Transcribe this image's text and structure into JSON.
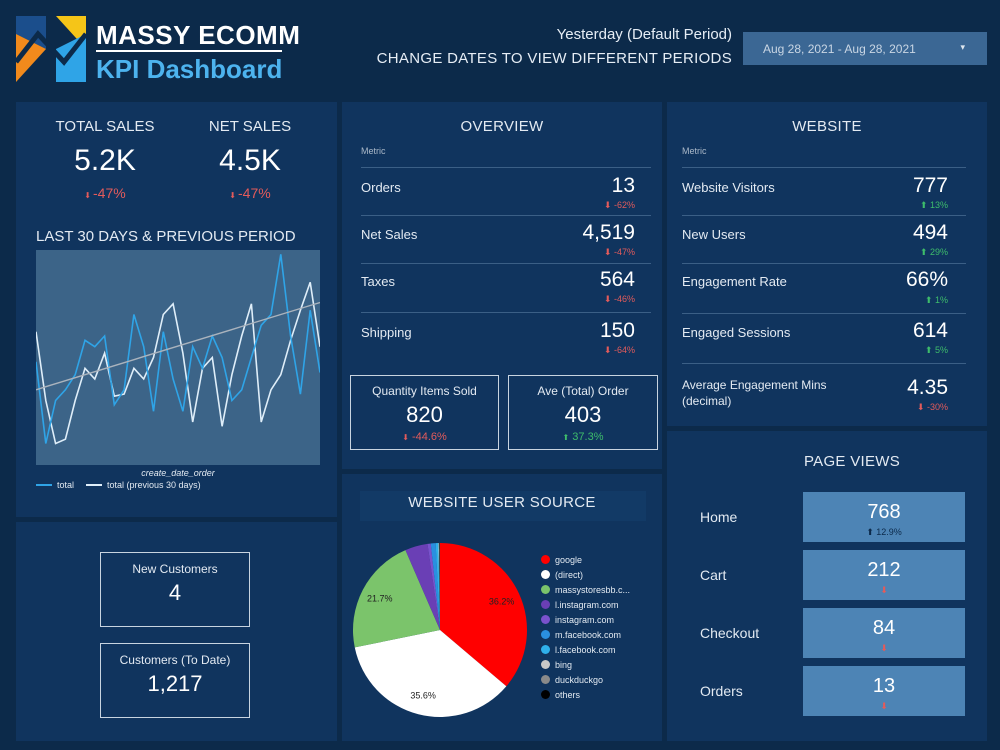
{
  "header": {
    "brand_line1": "MASSY ECOMM",
    "brand_line2": "KPI Dashboard",
    "period_label": "Yesterday (Default Period)",
    "period_hint": "CHANGE DATES TO VIEW DIFFERENT PERIODS",
    "date_range": "Aug 28, 2021 - Aug 28, 2021"
  },
  "colors": {
    "bg": "#0c2a4a",
    "panel": "#10345e",
    "negative": "#e35b5b",
    "positive": "#3ebd6b",
    "series_total": "#2fa4e7",
    "series_prev": "#dfeef9",
    "trend": "#aab3bd"
  },
  "sales": {
    "total_label": "TOTAL SALES",
    "total_value": "5.2K",
    "total_delta": "-47%",
    "net_label": "NET SALES",
    "net_value": "4.5K",
    "net_delta": "-47%"
  },
  "customers": {
    "new_label": "New Customers",
    "new_value": "4",
    "todate_label": "Customers (To Date)",
    "todate_value": "1,217"
  },
  "overview": {
    "title": "OVERVIEW",
    "metric_header": "Metric",
    "rows": [
      {
        "label": "Orders",
        "value": "13",
        "delta": "-62%"
      },
      {
        "label": "Net Sales",
        "value": "4,519",
        "delta": "-47%"
      },
      {
        "label": "Taxes",
        "value": "564",
        "delta": "-46%"
      },
      {
        "label": "Shipping",
        "value": "150",
        "delta": "-64%"
      }
    ],
    "qty_label": "Quantity Items Sold",
    "qty_value": "820",
    "qty_delta": "-44.6%",
    "ave_label": "Ave (Total) Order",
    "ave_value": "403",
    "ave_delta": "37.3%"
  },
  "website": {
    "title": "WEBSITE",
    "metric_header": "Metric",
    "rows": [
      {
        "label": "Website Visitors",
        "value": "777",
        "delta": "13%",
        "dir": "up"
      },
      {
        "label": "New Users",
        "value": "494",
        "delta": "29%",
        "dir": "up"
      },
      {
        "label": "Engagement Rate",
        "value": "66%",
        "delta": "1%",
        "dir": "up"
      },
      {
        "label": "Engaged Sessions",
        "value": "614",
        "delta": "5%",
        "dir": "up"
      },
      {
        "label": "Average Engagement Mins (decimal)",
        "value": "4.35",
        "delta": "-30%",
        "dir": "down"
      }
    ]
  },
  "page_views": {
    "title": "PAGE VIEWS",
    "rows": [
      {
        "label": "Home",
        "value": "768",
        "delta": "12.9%",
        "dir": "up"
      },
      {
        "label": "Cart",
        "value": "212",
        "delta": "",
        "dir": "down"
      },
      {
        "label": "Checkout",
        "value": "84",
        "delta": "",
        "dir": "down"
      },
      {
        "label": "Orders",
        "value": "13",
        "delta": "",
        "dir": "down"
      }
    ]
  },
  "chart_data": [
    {
      "type": "line",
      "title": "LAST 30 DAYS & PREVIOUS PERIOD",
      "xlabel": "create_date_order",
      "ylabel": "",
      "grid": false,
      "legend": "bottom-left",
      "ylim": [
        0,
        100
      ],
      "x": [
        1,
        2,
        3,
        4,
        5,
        6,
        7,
        8,
        9,
        10,
        11,
        12,
        13,
        14,
        15,
        16,
        17,
        18,
        19,
        20,
        21,
        22,
        23,
        24,
        25,
        26,
        27,
        28,
        29,
        30
      ],
      "series": [
        {
          "name": "total",
          "values": [
            48,
            10,
            30,
            35,
            42,
            58,
            55,
            60,
            28,
            35,
            70,
            55,
            25,
            62,
            40,
            25,
            55,
            45,
            60,
            50,
            30,
            35,
            50,
            65,
            70,
            98,
            60,
            33,
            72,
            43
          ]
        },
        {
          "name": "total (previous 30 days)",
          "values": [
            62,
            30,
            10,
            12,
            30,
            45,
            40,
            52,
            32,
            33,
            45,
            40,
            50,
            70,
            75,
            52,
            20,
            45,
            50,
            18,
            42,
            60,
            75,
            20,
            35,
            42,
            58,
            72,
            85,
            55
          ]
        },
        {
          "name": "",
          "values": [
            35,
            36.4,
            37.8,
            39.2,
            40.6,
            42,
            43.4,
            44.8,
            46.2,
            47.6,
            49,
            50.4,
            51.8,
            53.2,
            54.6,
            56,
            57.4,
            58.8,
            60.2,
            61.6,
            63,
            64.4,
            65.8,
            67.2,
            68.6,
            70,
            71.4,
            72.8,
            74.2,
            75.6
          ]
        }
      ]
    },
    {
      "type": "pie",
      "title": "WEBSITE USER SOURCE",
      "legend": "right",
      "slices": [
        {
          "label": "google",
          "value": 36.2,
          "color": "#ff0000",
          "pct_label": "36.2%"
        },
        {
          "label": "(direct)",
          "value": 35.6,
          "color": "#ffffff",
          "pct_label": "35.6%"
        },
        {
          "label": "massystoresbb.c...",
          "value": 21.7,
          "color": "#7bc46b",
          "pct_label": "21.7%"
        },
        {
          "label": "l.instagram.com",
          "value": 4.2,
          "color": "#6a3fb5",
          "pct_label": ""
        },
        {
          "label": "instagram.com",
          "value": 0.6,
          "color": "#7a52cc",
          "pct_label": ""
        },
        {
          "label": "m.facebook.com",
          "value": 0.9,
          "color": "#2a8fe0",
          "pct_label": ""
        },
        {
          "label": "l.facebook.com",
          "value": 0.5,
          "color": "#2fb0ea",
          "pct_label": ""
        },
        {
          "label": "bing",
          "value": 0.1,
          "color": "#c8c8c8",
          "pct_label": ""
        },
        {
          "label": "duckduckgo",
          "value": 0.1,
          "color": "#8a8a8a",
          "pct_label": ""
        },
        {
          "label": "others",
          "value": 0.1,
          "color": "#000000",
          "pct_label": ""
        }
      ]
    }
  ]
}
